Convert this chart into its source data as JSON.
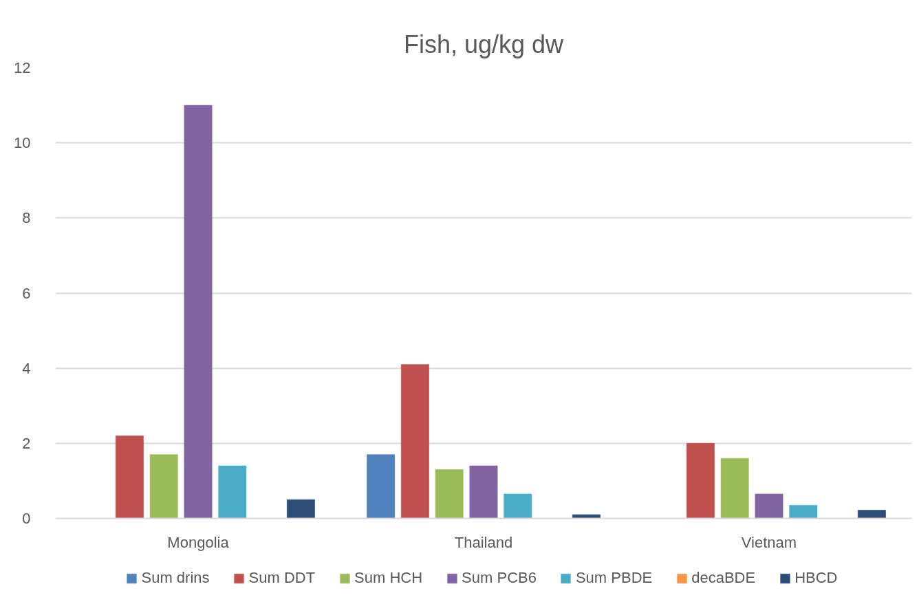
{
  "chart_data": {
    "type": "bar",
    "title": "Fish, ug/kg dw",
    "categories": [
      "Mongolia",
      "Thailand",
      "Vietnam"
    ],
    "series": [
      {
        "name": "Sum drins",
        "color": "#4f81bd",
        "values": [
          null,
          1.7,
          null
        ]
      },
      {
        "name": "Sum DDT",
        "color": "#c0504d",
        "values": [
          2.2,
          4.1,
          2.0
        ]
      },
      {
        "name": "Sum HCH",
        "color": "#9bbb59",
        "values": [
          1.7,
          1.3,
          1.6
        ]
      },
      {
        "name": "Sum PCB6",
        "color": "#8064a2",
        "values": [
          11.0,
          1.4,
          0.65
        ]
      },
      {
        "name": "Sum PBDE",
        "color": "#4bacc6",
        "values": [
          1.4,
          0.65,
          0.35
        ]
      },
      {
        "name": "decaBDE",
        "color": "#f79646",
        "values": [
          null,
          null,
          null
        ]
      },
      {
        "name": "HBCD",
        "color": "#2c4d75",
        "values": [
          0.5,
          0.1,
          0.22
        ]
      }
    ],
    "ylim": [
      0,
      12
    ],
    "yticks": [
      0,
      2,
      4,
      6,
      8,
      10,
      12
    ],
    "grid": "y",
    "legend": "bottom"
  }
}
